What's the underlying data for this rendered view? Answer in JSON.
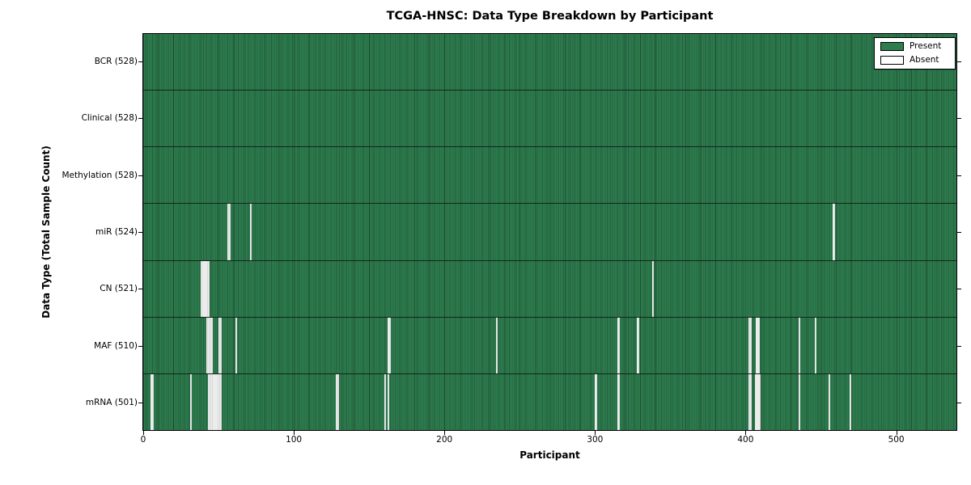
{
  "title": "TCGA-HNSC: Data Type Breakdown by Participant",
  "xlabel": "Participant",
  "ylabel": "Data Type (Total Sample Count)",
  "legend": {
    "items": [
      {
        "label": "Present",
        "color": "#2e7d4f"
      },
      {
        "label": "Absent",
        "color": "#ffffff"
      }
    ]
  },
  "colors": {
    "present_fill": "#2e7d4f",
    "present_edge": "#225f3b",
    "absent_fill": "#ececec",
    "axis": "#000000",
    "background": "#ffffff"
  },
  "chart_data": {
    "type": "heatmap",
    "title": "TCGA-HNSC: Data Type Breakdown by Participant",
    "xlabel": "Participant",
    "ylabel": "Data Type (Total Sample Count)",
    "legend_entries": [
      "Present",
      "Absent"
    ],
    "legend_position": "upper right",
    "grid": false,
    "n_participants": 528,
    "x_ticks": [
      0,
      100,
      200,
      300,
      400,
      500
    ],
    "x_max": 540,
    "rows": [
      {
        "name": "BCR",
        "label": "BCR (528)",
        "total": 528,
        "absent": []
      },
      {
        "name": "Clinical",
        "label": "Clinical (528)",
        "total": 528,
        "absent": []
      },
      {
        "name": "Methylation",
        "label": "Methylation (528)",
        "total": 528,
        "absent": []
      },
      {
        "name": "miR",
        "label": "miR (524)",
        "total": 524,
        "absent": [
          56,
          57,
          71,
          458
        ]
      },
      {
        "name": "CN",
        "label": "CN (521)",
        "total": 521,
        "absent": [
          38,
          39,
          40,
          41,
          42,
          43,
          338
        ]
      },
      {
        "name": "MAF",
        "label": "MAF (510)",
        "total": 510,
        "absent": [
          42,
          43,
          44,
          45,
          50,
          51,
          61,
          162,
          163,
          234,
          315,
          328,
          402,
          403,
          407,
          408,
          435,
          446
        ]
      },
      {
        "name": "mRNA",
        "label": "mRNA (501)",
        "total": 501,
        "absent": [
          5,
          6,
          31,
          43,
          44,
          45,
          46,
          47,
          48,
          49,
          50,
          51,
          128,
          129,
          160,
          162,
          300,
          315,
          402,
          403,
          406,
          407,
          408,
          409,
          435,
          455,
          469
        ]
      }
    ]
  }
}
